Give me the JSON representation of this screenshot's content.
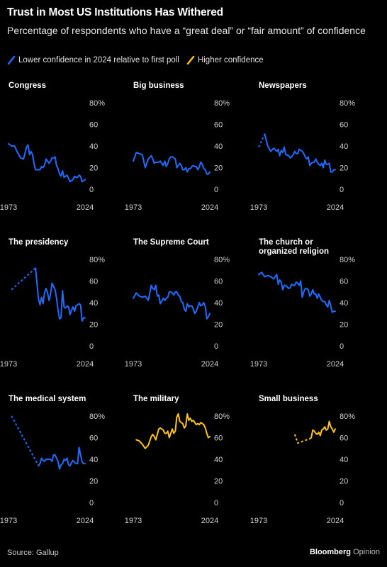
{
  "title": "Trust in Most US Institutions Has Withered",
  "subtitle": "Percentage of respondents who have a “great deal” or “fair amount” of confidence",
  "legend": {
    "lower": "Lower confidence in 2024 relative to first poll",
    "higher": "Higher confidence",
    "lower_color": "#1f6bff",
    "higher_color": "#ffc21a"
  },
  "source": "Source: Gallup",
  "brand": {
    "name": "Bloomberg",
    "suffix": "Opinion"
  },
  "chart_data": [
    {
      "type": "line",
      "title": "Congress",
      "trend": "lower",
      "x_start": "1973",
      "x_end": "2024",
      "ylim": [
        0,
        80
      ],
      "yticks": [
        "80%",
        "60",
        "40",
        "20",
        "0"
      ],
      "x": [
        1973,
        1975,
        1977,
        1979,
        1981,
        1983,
        1985,
        1986,
        1987,
        1988,
        1989,
        1990,
        1991,
        1993,
        1994,
        1995,
        1996,
        1997,
        1998,
        1999,
        2000,
        2001,
        2002,
        2003,
        2004,
        2005,
        2006,
        2007,
        2008,
        2009,
        2010,
        2011,
        2012,
        2013,
        2014,
        2015,
        2016,
        2017,
        2018,
        2019,
        2020,
        2021,
        2022,
        2023,
        2024
      ],
      "values": [
        42,
        40,
        40,
        34,
        29,
        28,
        39,
        41,
        32,
        35,
        32,
        24,
        18,
        18,
        18,
        21,
        20,
        22,
        28,
        26,
        24,
        26,
        29,
        29,
        30,
        22,
        19,
        14,
        12,
        17,
        11,
        12,
        13,
        10,
        7,
        8,
        9,
        12,
        11,
        11,
        13,
        12,
        7,
        8,
        9
      ],
      "dashed_to_index": 0
    },
    {
      "type": "line",
      "title": "Big business",
      "trend": "lower",
      "x_start": "1973",
      "x_end": "2024",
      "ylim": [
        0,
        80
      ],
      "yticks": [
        "80%",
        "60",
        "40",
        "20",
        "0"
      ],
      "x": [
        1973,
        1975,
        1977,
        1979,
        1981,
        1983,
        1985,
        1986,
        1987,
        1988,
        1989,
        1990,
        1991,
        1993,
        1994,
        1995,
        1996,
        1997,
        1998,
        1999,
        2000,
        2001,
        2002,
        2003,
        2004,
        2005,
        2006,
        2007,
        2008,
        2009,
        2010,
        2011,
        2012,
        2013,
        2014,
        2015,
        2016,
        2017,
        2018,
        2019,
        2020,
        2021,
        2022,
        2023,
        2024
      ],
      "values": [
        26,
        34,
        33,
        32,
        20,
        28,
        31,
        28,
        24,
        25,
        25,
        25,
        26,
        22,
        26,
        21,
        24,
        28,
        30,
        30,
        29,
        28,
        20,
        22,
        24,
        22,
        18,
        18,
        20,
        16,
        19,
        19,
        21,
        22,
        21,
        21,
        18,
        21,
        25,
        23,
        19,
        18,
        14,
        14,
        16
      ],
      "dashed_to_index": 0
    },
    {
      "type": "line",
      "title": "Newspapers",
      "trend": "lower",
      "x_start": "1973",
      "x_end": "2024",
      "ylim": [
        0,
        80
      ],
      "yticks": [
        "80%",
        "60",
        "40",
        "20",
        "0"
      ],
      "x": [
        1973,
        1977,
        1979,
        1981,
        1983,
        1985,
        1986,
        1987,
        1988,
        1989,
        1990,
        1991,
        1993,
        1994,
        1995,
        1996,
        1997,
        1998,
        1999,
        2000,
        2001,
        2002,
        2003,
        2004,
        2005,
        2006,
        2007,
        2008,
        2009,
        2010,
        2011,
        2012,
        2013,
        2014,
        2015,
        2016,
        2017,
        2018,
        2019,
        2020,
        2021,
        2022,
        2023,
        2024
      ],
      "values": [
        39,
        51,
        40,
        35,
        38,
        35,
        37,
        31,
        36,
        34,
        39,
        32,
        31,
        29,
        30,
        32,
        35,
        33,
        33,
        37,
        36,
        35,
        33,
        30,
        28,
        30,
        22,
        24,
        25,
        25,
        28,
        25,
        23,
        22,
        24,
        20,
        27,
        23,
        23,
        24,
        16,
        16,
        18,
        18
      ],
      "dashed_to_index": 1
    },
    {
      "type": "line",
      "title": "The presidency",
      "trend": "lower",
      "x_start": "1973",
      "x_end": "2024",
      "ylim": [
        0,
        80
      ],
      "yticks": [
        "80%",
        "60",
        "40",
        "20",
        "0"
      ],
      "x": [
        1975,
        1991,
        1993,
        1994,
        1995,
        1996,
        1997,
        1998,
        1999,
        2000,
        2001,
        2002,
        2003,
        2004,
        2005,
        2006,
        2007,
        2008,
        2009,
        2010,
        2011,
        2012,
        2013,
        2014,
        2015,
        2016,
        2017,
        2018,
        2019,
        2020,
        2021,
        2022,
        2023,
        2024
      ],
      "values": [
        52,
        72,
        43,
        38,
        45,
        39,
        49,
        53,
        49,
        42,
        48,
        58,
        55,
        52,
        44,
        33,
        25,
        26,
        51,
        36,
        35,
        37,
        36,
        29,
        33,
        36,
        32,
        37,
        38,
        39,
        38,
        23,
        26,
        26
      ],
      "dashed_to_index": 1
    },
    {
      "type": "line",
      "title": "The Supreme Court",
      "trend": "lower",
      "x_start": "1973",
      "x_end": "2024",
      "ylim": [
        0,
        80
      ],
      "yticks": [
        "80%",
        "60",
        "40",
        "20",
        "0"
      ],
      "x": [
        1973,
        1975,
        1977,
        1979,
        1981,
        1983,
        1985,
        1986,
        1987,
        1988,
        1989,
        1990,
        1991,
        1993,
        1994,
        1995,
        1996,
        1997,
        1998,
        1999,
        2000,
        2001,
        2002,
        2003,
        2004,
        2005,
        2006,
        2007,
        2008,
        2009,
        2010,
        2011,
        2012,
        2013,
        2014,
        2015,
        2016,
        2017,
        2018,
        2019,
        2020,
        2021,
        2022,
        2023,
        2024
      ],
      "values": [
        44,
        49,
        46,
        45,
        46,
        42,
        56,
        53,
        52,
        56,
        46,
        47,
        39,
        44,
        42,
        44,
        45,
        50,
        50,
        49,
        47,
        50,
        50,
        47,
        46,
        41,
        40,
        34,
        32,
        39,
        36,
        37,
        37,
        34,
        30,
        32,
        36,
        40,
        37,
        38,
        40,
        36,
        25,
        27,
        30
      ],
      "dashed_to_index": 0
    },
    {
      "type": "line",
      "title": "The church or organized religion",
      "trend": "lower",
      "x_start": "1973",
      "x_end": "2024",
      "ylim": [
        0,
        80
      ],
      "yticks": [
        "80%",
        "60",
        "40",
        "20",
        "0"
      ],
      "x": [
        1973,
        1975,
        1977,
        1979,
        1981,
        1983,
        1985,
        1986,
        1987,
        1988,
        1989,
        1990,
        1991,
        1993,
        1994,
        1995,
        1996,
        1997,
        1998,
        1999,
        2000,
        2001,
        2002,
        2003,
        2004,
        2005,
        2006,
        2007,
        2008,
        2009,
        2010,
        2011,
        2012,
        2013,
        2014,
        2015,
        2016,
        2017,
        2018,
        2019,
        2020,
        2021,
        2022,
        2023,
        2024
      ],
      "values": [
        66,
        68,
        64,
        65,
        64,
        62,
        66,
        57,
        61,
        59,
        52,
        56,
        56,
        53,
        54,
        57,
        56,
        56,
        59,
        58,
        56,
        60,
        45,
        50,
        53,
        53,
        52,
        46,
        48,
        52,
        48,
        48,
        44,
        48,
        45,
        42,
        41,
        41,
        38,
        36,
        42,
        37,
        31,
        32,
        32
      ],
      "dashed_to_index": 0
    },
    {
      "type": "line",
      "title": "The medical system",
      "trend": "lower",
      "x_start": "1973",
      "x_end": "2024",
      "ylim": [
        0,
        80
      ],
      "yticks": [
        "80%",
        "60",
        "40",
        "20",
        "0"
      ],
      "x": [
        1975,
        1993,
        1994,
        1995,
        1996,
        1997,
        1998,
        1999,
        2000,
        2001,
        2002,
        2003,
        2004,
        2005,
        2006,
        2007,
        2008,
        2009,
        2010,
        2011,
        2012,
        2013,
        2014,
        2015,
        2016,
        2017,
        2018,
        2019,
        2020,
        2021,
        2022,
        2023,
        2024
      ],
      "values": [
        80,
        34,
        36,
        41,
        39,
        38,
        40,
        40,
        40,
        40,
        38,
        44,
        44,
        41,
        38,
        31,
        35,
        36,
        40,
        39,
        41,
        35,
        34,
        37,
        39,
        37,
        36,
        36,
        51,
        44,
        38,
        36,
        36
      ],
      "dashed_to_index": 1
    },
    {
      "type": "line",
      "title": "The military",
      "trend": "higher",
      "x_start": "1973",
      "x_end": "2024",
      "ylim": [
        0,
        80
      ],
      "yticks": [
        "80%",
        "60",
        "40",
        "20",
        "0"
      ],
      "x": [
        1975,
        1977,
        1979,
        1981,
        1983,
        1985,
        1986,
        1987,
        1988,
        1989,
        1990,
        1991,
        1993,
        1994,
        1995,
        1996,
        1997,
        1998,
        1999,
        2000,
        2001,
        2002,
        2003,
        2004,
        2005,
        2006,
        2007,
        2008,
        2009,
        2010,
        2011,
        2012,
        2013,
        2014,
        2015,
        2016,
        2017,
        2018,
        2019,
        2020,
        2021,
        2022,
        2023,
        2024
      ],
      "values": [
        58,
        57,
        54,
        50,
        53,
        61,
        63,
        61,
        58,
        63,
        68,
        69,
        67,
        64,
        64,
        66,
        60,
        64,
        68,
        64,
        66,
        79,
        82,
        75,
        74,
        73,
        69,
        71,
        82,
        76,
        78,
        75,
        76,
        74,
        72,
        73,
        72,
        74,
        73,
        72,
        69,
        64,
        60,
        61
      ],
      "dashed_to_index": 0
    },
    {
      "type": "line",
      "title": "Small business",
      "trend": "higher",
      "x_start": "1973",
      "x_end": "2024",
      "ylim": [
        0,
        80
      ],
      "yticks": [
        "80%",
        "60",
        "40",
        "20",
        "0"
      ],
      "x": [
        1997,
        1999,
        2007,
        2008,
        2009,
        2010,
        2011,
        2012,
        2013,
        2014,
        2015,
        2016,
        2017,
        2018,
        2019,
        2020,
        2021,
        2022,
        2023,
        2024
      ],
      "values": [
        63,
        55,
        59,
        60,
        67,
        66,
        64,
        63,
        65,
        62,
        67,
        68,
        70,
        67,
        68,
        75,
        70,
        68,
        65,
        68
      ],
      "dashed_to_index": 2
    }
  ]
}
